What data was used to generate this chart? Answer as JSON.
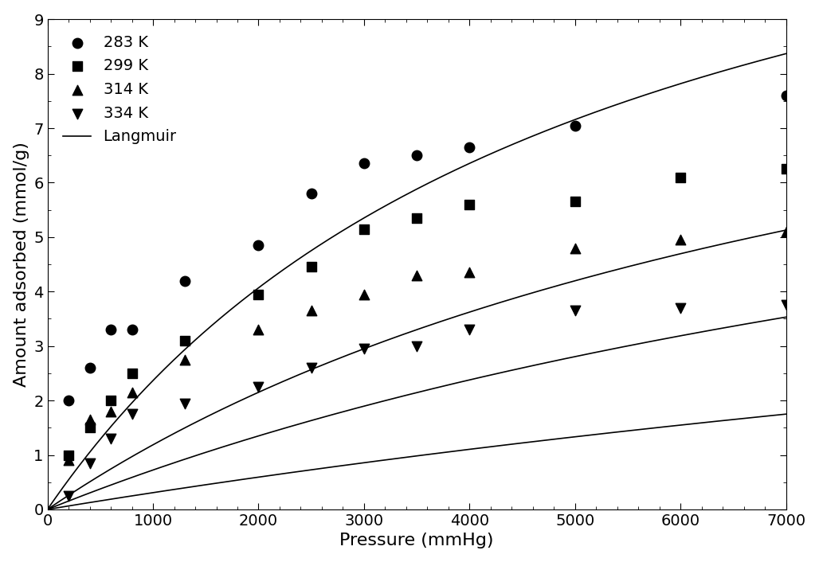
{
  "title": "",
  "xlabel": "Pressure (mmHg)",
  "ylabel": "Amount adsorbed (mmol/g)",
  "xlim": [
    0,
    7000
  ],
  "ylim": [
    0,
    9
  ],
  "xticks": [
    0,
    1000,
    2000,
    3000,
    4000,
    5000,
    6000,
    7000
  ],
  "yticks": [
    0,
    1,
    2,
    3,
    4,
    5,
    6,
    7,
    8,
    9
  ],
  "series": [
    {
      "label": "283 K",
      "marker": "o",
      "color": "black",
      "x": [
        200,
        400,
        600,
        800,
        1300,
        2000,
        2500,
        3000,
        3500,
        4000,
        5000,
        7000
      ],
      "y": [
        2.0,
        2.6,
        3.3,
        3.3,
        4.2,
        4.85,
        5.8,
        6.35,
        6.5,
        6.65,
        7.05,
        7.6
      ],
      "langmuir_qm": 14.5,
      "langmuir_b": 0.000195
    },
    {
      "label": "299 K",
      "marker": "s",
      "color": "black",
      "x": [
        200,
        400,
        600,
        800,
        1300,
        2000,
        2500,
        3000,
        3500,
        4000,
        5000,
        6000,
        7000
      ],
      "y": [
        1.0,
        1.5,
        2.0,
        2.5,
        3.1,
        3.95,
        4.45,
        5.15,
        5.35,
        5.6,
        5.65,
        6.1,
        6.25
      ],
      "langmuir_qm": 11.5,
      "langmuir_b": 0.000115
    },
    {
      "label": "314 K",
      "marker": "^",
      "color": "black",
      "x": [
        200,
        400,
        600,
        800,
        1300,
        2000,
        2500,
        3000,
        3500,
        4000,
        5000,
        6000,
        7000
      ],
      "y": [
        0.9,
        1.65,
        1.8,
        2.15,
        2.75,
        3.3,
        3.65,
        3.95,
        4.3,
        4.35,
        4.8,
        4.95,
        5.1
      ],
      "langmuir_qm": 10.0,
      "langmuir_b": 7.8e-05
    },
    {
      "label": "334 K",
      "marker": "v",
      "color": "black",
      "x": [
        200,
        400,
        600,
        800,
        1300,
        2000,
        2500,
        3000,
        3500,
        4000,
        5000,
        6000,
        7000
      ],
      "y": [
        0.25,
        0.85,
        1.3,
        1.75,
        1.95,
        2.25,
        2.6,
        2.95,
        3.0,
        3.3,
        3.65,
        3.7,
        3.75
      ],
      "langmuir_qm": 8.0,
      "langmuir_b": 4e-05
    }
  ],
  "legend_label_langmuir": "Langmuir",
  "marker_size": 9,
  "line_width": 1.2,
  "font_size": 14,
  "label_font_size": 16
}
